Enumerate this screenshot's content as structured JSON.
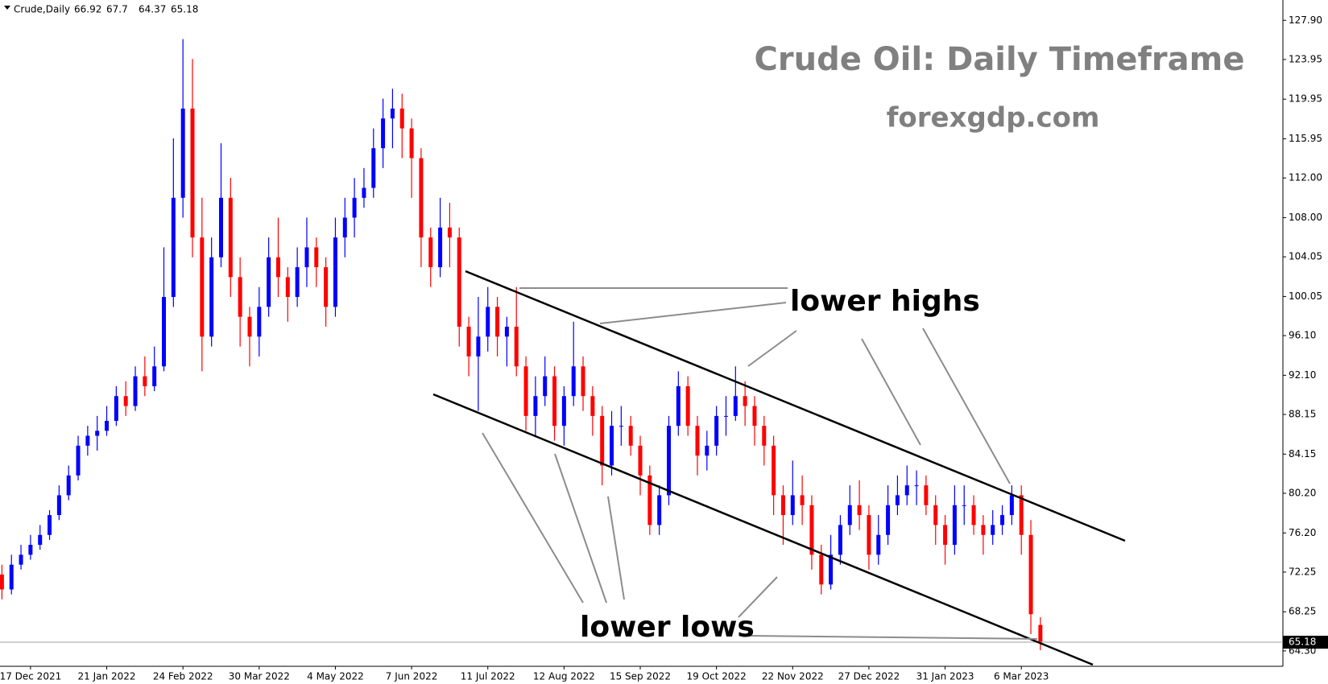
{
  "chart_data": {
    "type": "candlestick",
    "symbol": "Crude,Daily",
    "title": "Crude Oil: Daily Timeframe",
    "subtitle": "forexgdp.com",
    "annotations": [
      "lower highs",
      "lower lows"
    ],
    "up_color": "#0000ff",
    "down_color": "#ff0000",
    "grid": false,
    "ylim": [
      62.75,
      129.3
    ],
    "yticks": [
      {
        "value": 127.9,
        "label": "127.90"
      },
      123.95,
      119.95,
      115.95,
      {
        "value": 112,
        "label": "112.00"
      },
      {
        "value": 108,
        "label": "108.00"
      },
      104.05,
      100.05,
      {
        "value": 96.1,
        "label": "96.10"
      },
      {
        "value": 92.1,
        "label": "92.10"
      },
      88.15,
      84.15,
      {
        "value": 80.2,
        "label": "80.20"
      },
      {
        "value": 76.2,
        "label": "76.20"
      },
      72.25,
      68.25,
      {
        "value": 64.3,
        "label": "64.30"
      }
    ],
    "categories": [
      null,
      null,
      null,
      "17 Dec 2021",
      null,
      null,
      null,
      null,
      null,
      null,
      null,
      "21 Jan 2022",
      null,
      null,
      null,
      null,
      null,
      null,
      null,
      "24 Feb 2022",
      null,
      null,
      null,
      null,
      null,
      null,
      null,
      "30 Mar 2022",
      null,
      null,
      null,
      null,
      null,
      null,
      null,
      "4 May 2022",
      null,
      null,
      null,
      null,
      null,
      null,
      null,
      "7 Jun 2022",
      null,
      null,
      null,
      null,
      null,
      null,
      null,
      "11 Jul 2022",
      null,
      null,
      null,
      null,
      null,
      null,
      null,
      "12 Aug 2022",
      null,
      null,
      null,
      null,
      null,
      null,
      null,
      "15 Sep 2022",
      null,
      null,
      null,
      null,
      null,
      null,
      null,
      "19 Oct 2022",
      null,
      null,
      null,
      null,
      null,
      null,
      null,
      "22 Nov 2022",
      null,
      null,
      null,
      null,
      null,
      null,
      null,
      "27 Dec 2022",
      null,
      null,
      null,
      null,
      null,
      null,
      null,
      "31 Jan 2023",
      null,
      null,
      null,
      null,
      null,
      null,
      null,
      "6 Mar 2023",
      null,
      null
    ],
    "series": [
      {
        "name": "Crude",
        "ohlc": [
          [
            72,
            73,
            69.5,
            70.5
          ],
          [
            70.5,
            74,
            70,
            73
          ],
          [
            73,
            75,
            72.5,
            74
          ],
          [
            74,
            76,
            73.5,
            75
          ],
          [
            75,
            77,
            74.5,
            76
          ],
          [
            76,
            78.5,
            75.5,
            78
          ],
          [
            78,
            81,
            77.5,
            80
          ],
          [
            80,
            83,
            79.5,
            82
          ],
          [
            82,
            86,
            81.5,
            85
          ],
          [
            85,
            87,
            84,
            86
          ],
          [
            86,
            88,
            84.5,
            86.5
          ],
          [
            86.5,
            89,
            86,
            87.5
          ],
          [
            87.5,
            91,
            87,
            90
          ],
          [
            90,
            91.5,
            88,
            89
          ],
          [
            89,
            93,
            88.5,
            92
          ],
          [
            92,
            94,
            90,
            91
          ],
          [
            91,
            95,
            90.5,
            93
          ],
          [
            93,
            105,
            92.5,
            100
          ],
          [
            100,
            116,
            99,
            110
          ],
          [
            110,
            126,
            108,
            119
          ],
          [
            119,
            124,
            104,
            106
          ],
          [
            106,
            110,
            92.5,
            96
          ],
          [
            96,
            106,
            95,
            104
          ],
          [
            104,
            115.5,
            103,
            110
          ],
          [
            110,
            112,
            100,
            102
          ],
          [
            102,
            104,
            95,
            98
          ],
          [
            98,
            99,
            93,
            96
          ],
          [
            96,
            101,
            94,
            99
          ],
          [
            99,
            106,
            98,
            104
          ],
          [
            104,
            108,
            100,
            102
          ],
          [
            102,
            103,
            97.5,
            100
          ],
          [
            100,
            105,
            99,
            103
          ],
          [
            103,
            108,
            101,
            105
          ],
          [
            105,
            106,
            101,
            103
          ],
          [
            103,
            104,
            97,
            99
          ],
          [
            99,
            108,
            98,
            106
          ],
          [
            106,
            110,
            104,
            108
          ],
          [
            108,
            112,
            106,
            110
          ],
          [
            110,
            113,
            109,
            111
          ],
          [
            111,
            117,
            110,
            115
          ],
          [
            115,
            120,
            113,
            118
          ],
          [
            118,
            121,
            115,
            119
          ],
          [
            119,
            120.5,
            114,
            117
          ],
          [
            117,
            118,
            110,
            114
          ],
          [
            114,
            115,
            103,
            106
          ],
          [
            106,
            107,
            101,
            103
          ],
          [
            103,
            110,
            102,
            107
          ],
          [
            107,
            109.5,
            103,
            106
          ],
          [
            106,
            107,
            95,
            97
          ],
          [
            97,
            98,
            92,
            94
          ],
          [
            94,
            100,
            88.5,
            96
          ],
          [
            96,
            101,
            94.5,
            99
          ],
          [
            99,
            100,
            94,
            96
          ],
          [
            96,
            98,
            93,
            97
          ],
          [
            97,
            101,
            92,
            93
          ],
          [
            93,
            94,
            86.5,
            88
          ],
          [
            88,
            92,
            86,
            90
          ],
          [
            90,
            94,
            89,
            92
          ],
          [
            92,
            93,
            85.5,
            87
          ],
          [
            87,
            91,
            85,
            90
          ],
          [
            90,
            97.5,
            89,
            93
          ],
          [
            93,
            94,
            88.5,
            90
          ],
          [
            90,
            91,
            86,
            88
          ],
          [
            88,
            89,
            81,
            83
          ],
          [
            83,
            88.5,
            82,
            87
          ],
          [
            87,
            89,
            85,
            87
          ],
          [
            87,
            88,
            84,
            85
          ],
          [
            85,
            86,
            80,
            82
          ],
          [
            82,
            83,
            76,
            77
          ],
          [
            77,
            81,
            76,
            80
          ],
          [
            80,
            88,
            79,
            87
          ],
          [
            87,
            92.5,
            86,
            91
          ],
          [
            91,
            92,
            86,
            87
          ],
          [
            87,
            88,
            82,
            84
          ],
          [
            84,
            86.5,
            82.5,
            85
          ],
          [
            85,
            89,
            84,
            88
          ],
          [
            88,
            90,
            86,
            88
          ],
          [
            88,
            93,
            87.5,
            90
          ],
          [
            90,
            91.5,
            87,
            89
          ],
          [
            89,
            90,
            85,
            87
          ],
          [
            87,
            88,
            83,
            85
          ],
          [
            85,
            86,
            78,
            80
          ],
          [
            80,
            81,
            75,
            78
          ],
          [
            78,
            83.5,
            77,
            80
          ],
          [
            80,
            82,
            77,
            79
          ],
          [
            79,
            80,
            72.5,
            74
          ],
          [
            74,
            75,
            70,
            71
          ],
          [
            71,
            76,
            70.5,
            74
          ],
          [
            74,
            78,
            73,
            77
          ],
          [
            77,
            81,
            76,
            79
          ],
          [
            79,
            81.5,
            76.5,
            78
          ],
          [
            78,
            79,
            72.5,
            74
          ],
          [
            74,
            78,
            73,
            76
          ],
          [
            76,
            81,
            75,
            79
          ],
          [
            79,
            82,
            78,
            80
          ],
          [
            80,
            83,
            79,
            81
          ],
          [
            81,
            82.5,
            79,
            81
          ],
          [
            81,
            82,
            78,
            79
          ],
          [
            79,
            80,
            75,
            77
          ],
          [
            77,
            78,
            73,
            75
          ],
          [
            75,
            81,
            74,
            79
          ],
          [
            79,
            81,
            77,
            79
          ],
          [
            79,
            80,
            76,
            77
          ],
          [
            77,
            78,
            74,
            76
          ],
          [
            76,
            78.5,
            75,
            77
          ],
          [
            77,
            79,
            76,
            78
          ],
          [
            78,
            81,
            77,
            80
          ],
          [
            80,
            81,
            74,
            76
          ],
          [
            76,
            77.5,
            66,
            68
          ],
          [
            66.92,
            67.7,
            64.37,
            65.18
          ]
        ]
      }
    ]
  }
}
